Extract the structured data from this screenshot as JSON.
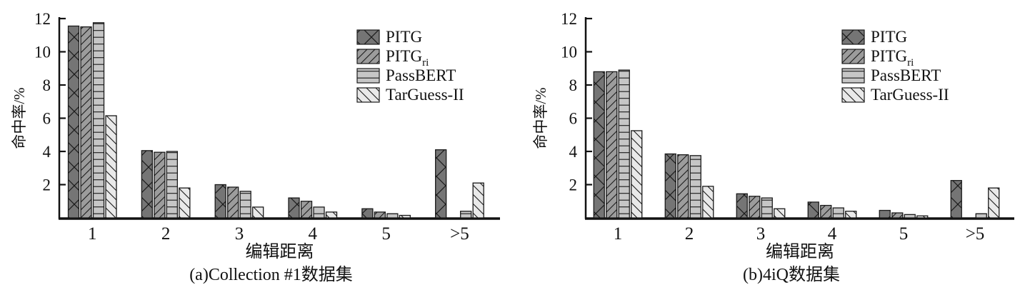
{
  "figure": {
    "background": "#ffffff",
    "axis_color": "#111111",
    "hatch_color": "#1a1a1a"
  },
  "chart_data": [
    {
      "type": "bar",
      "caption": "(a)Collection #1数据集",
      "xlabel": "编辑距离",
      "ylabel": "命中率/%",
      "categories": [
        "1",
        "2",
        "3",
        "4",
        "5",
        ">5"
      ],
      "ylim": [
        0,
        12
      ],
      "yticks": [
        "2",
        "4",
        "6",
        "8",
        "10",
        "12"
      ],
      "grid": false,
      "legend_position": "upper-right-inside",
      "series": [
        {
          "name": "PITG",
          "label_main": "PITG",
          "label_sub": "",
          "hatch": "cross-diagonal",
          "fill": "#757575",
          "values": [
            11.55,
            4.05,
            2.0,
            1.2,
            0.55,
            4.1
          ]
        },
        {
          "name": "PITG_ri",
          "label_main": "PITG",
          "label_sub": "ri",
          "hatch": "forward-diagonal",
          "fill": "#9c9c9c",
          "values": [
            11.5,
            3.95,
            1.85,
            1.0,
            0.35,
            0
          ]
        },
        {
          "name": "PassBERT",
          "label_main": "PassBERT",
          "label_sub": "",
          "hatch": "horizontal",
          "fill": "#c6c6c6",
          "values": [
            11.75,
            4.0,
            1.6,
            0.65,
            0.25,
            0.4
          ]
        },
        {
          "name": "TarGuess-II",
          "label_main": "TarGuess-II",
          "label_sub": "",
          "hatch": "back-diagonal",
          "fill": "#e9e9e9",
          "values": [
            6.15,
            1.8,
            0.65,
            0.35,
            0.15,
            2.1
          ]
        }
      ]
    },
    {
      "type": "bar",
      "caption": "(b)4iQ数据集",
      "xlabel": "编辑距离",
      "ylabel": "命中率/%",
      "categories": [
        "1",
        "2",
        "3",
        "4",
        "5",
        ">5"
      ],
      "ylim": [
        0,
        12
      ],
      "yticks": [
        "2",
        "4",
        "6",
        "8",
        "10",
        "12"
      ],
      "grid": false,
      "legend_position": "upper-right-inside",
      "series": [
        {
          "name": "PITG",
          "label_main": "PITG",
          "label_sub": "",
          "hatch": "cross-diagonal",
          "fill": "#757575",
          "values": [
            8.8,
            3.85,
            1.45,
            0.95,
            0.45,
            2.25
          ]
        },
        {
          "name": "PITG_ri",
          "label_main": "PITG",
          "label_sub": "ri",
          "hatch": "forward-diagonal",
          "fill": "#9c9c9c",
          "values": [
            8.8,
            3.8,
            1.3,
            0.75,
            0.3,
            0
          ]
        },
        {
          "name": "PassBERT",
          "label_main": "PassBERT",
          "label_sub": "",
          "hatch": "horizontal",
          "fill": "#c6c6c6",
          "values": [
            8.9,
            3.75,
            1.2,
            0.6,
            0.2,
            0.25
          ]
        },
        {
          "name": "TarGuess-II",
          "label_main": "TarGuess-II",
          "label_sub": "",
          "hatch": "back-diagonal",
          "fill": "#e9e9e9",
          "values": [
            5.25,
            1.9,
            0.55,
            0.4,
            0.12,
            1.8
          ]
        }
      ]
    }
  ]
}
